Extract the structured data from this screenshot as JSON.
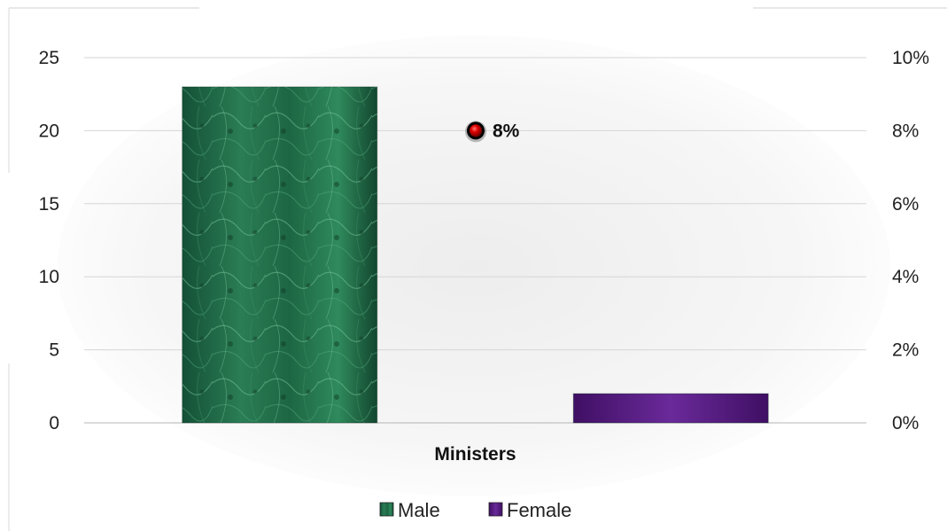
{
  "chart_data": {
    "type": "bar",
    "title": "",
    "xlabel": "",
    "ylabel": "",
    "categories": [
      "Ministers"
    ],
    "series": [
      {
        "name": "Male",
        "values": [
          23
        ],
        "color": "#1f6b45",
        "axis": "primary"
      },
      {
        "name": "Female",
        "values": [
          2
        ],
        "color": "#5b1f86",
        "axis": "primary"
      },
      {
        "name": "",
        "values": [
          0.08
        ],
        "color": "#e00000",
        "axis": "secondary",
        "kind": "point",
        "data_labels": [
          "8%"
        ]
      }
    ],
    "ylim": [
      0,
      25
    ],
    "y_ticks": [
      "0",
      "5",
      "10",
      "15",
      "20",
      "25"
    ],
    "y2lim": [
      0,
      0.1
    ],
    "y2_ticks": [
      "0%",
      "2%",
      "4%",
      "6%",
      "8%",
      "10%"
    ],
    "grid": true,
    "legend_position": "bottom"
  }
}
